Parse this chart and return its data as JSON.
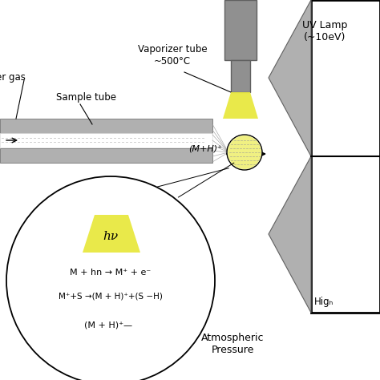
{
  "bg_color": "#ffffff",
  "gray_color": "#909090",
  "light_gray": "#b0b0b0",
  "dark_gray": "#606060",
  "yellow_color": "#e8e840",
  "black": "#000000",
  "uv_lamp_label": "UV Lamp\n(~10eV)",
  "vaporizer_label": "Vaporizer tube\n~500°C",
  "sample_tube_label": "Sample tube",
  "carrier_gas_label": "er gas",
  "ion_label": "(M+H)⁺",
  "hv_label": "hν",
  "eq1": "M + hn → M⁺ + e⁻",
  "eq2": "M⁺+S →(M + H)⁺+(S −H)",
  "eq3": "(M + H)⁺—",
  "atm_label": "Atmospheric\nPressure",
  "high_label": "Higₕ"
}
